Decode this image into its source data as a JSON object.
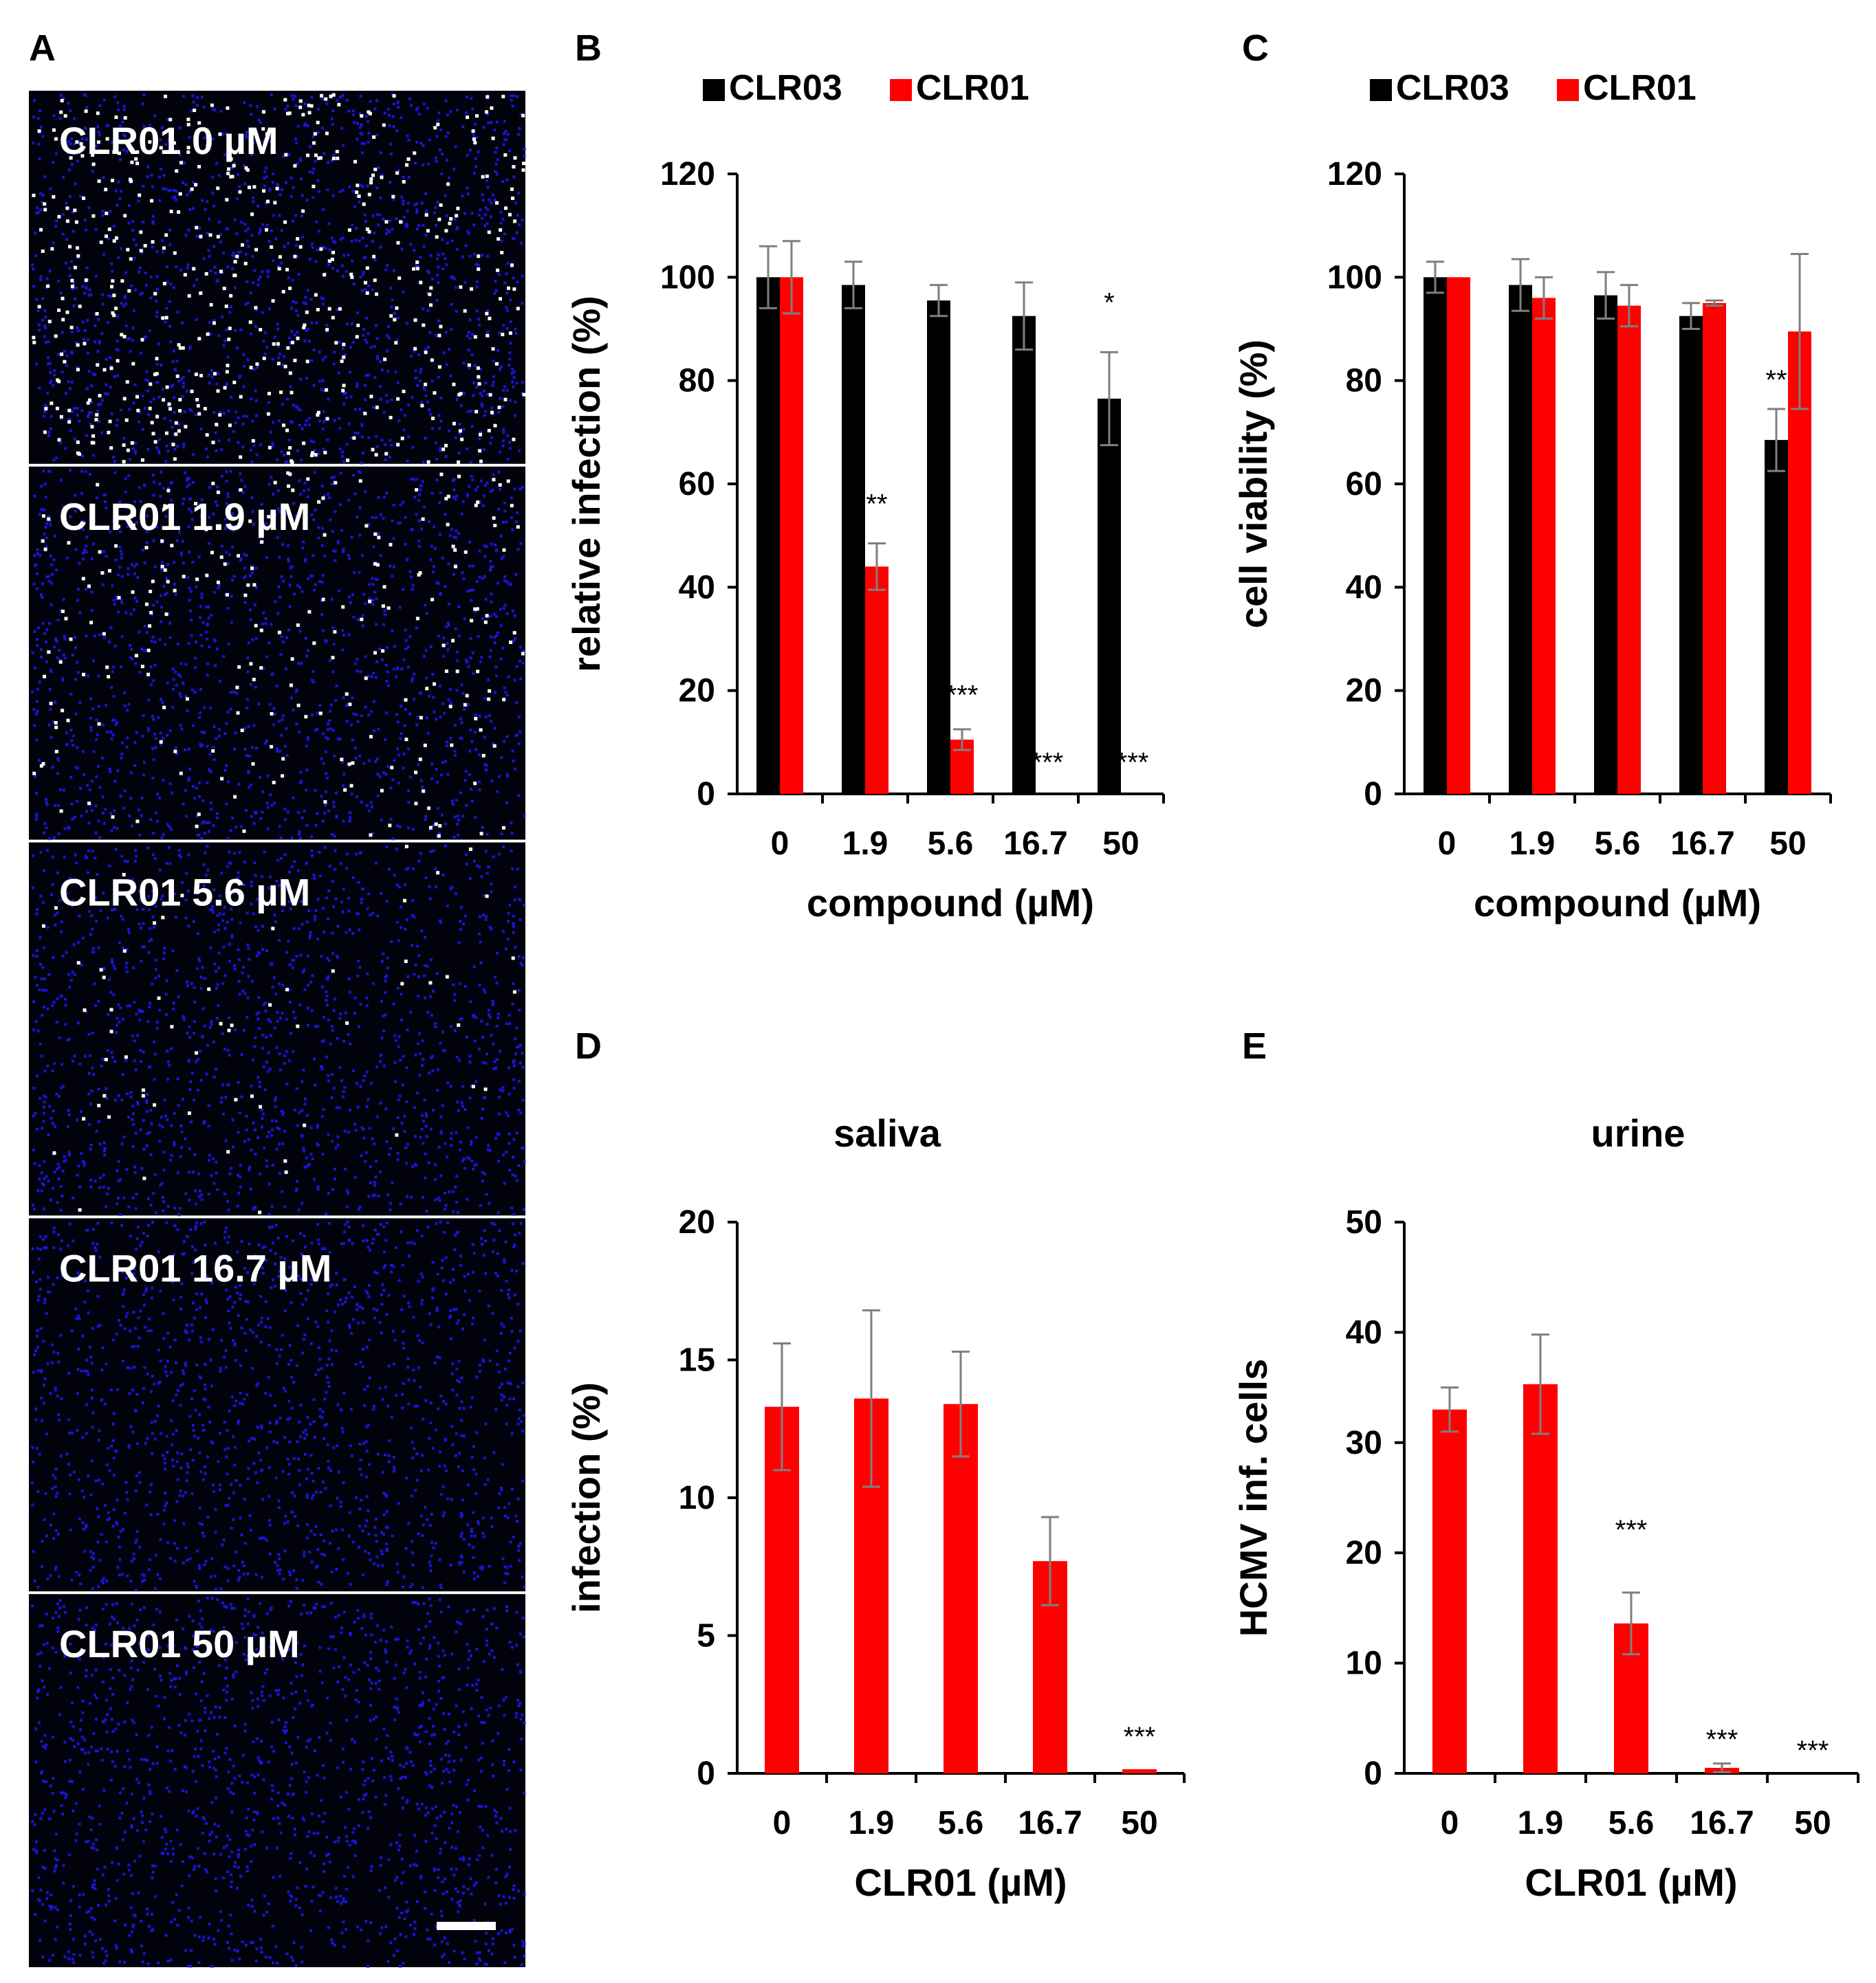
{
  "colors": {
    "clr03": "#000000",
    "clr01": "#ff0000",
    "error": "#7f7f7f",
    "nuclei": "#1a1aff",
    "infected": "#ffffff",
    "micro_bg": "#02020c"
  },
  "panel_letters": [
    "A",
    "B",
    "C",
    "D",
    "E"
  ],
  "panel_a": {
    "label": "A",
    "images": [
      {
        "caption": "CLR01 0 µM",
        "infected_level": 1.0
      },
      {
        "caption": "CLR01 1.9 µM",
        "infected_level": 0.44
      },
      {
        "caption": "CLR01 5.6 µM",
        "infected_level": 0.12
      },
      {
        "caption": "CLR01 16.7 µM",
        "infected_level": 0.0
      },
      {
        "caption": "CLR01 50 µM",
        "infected_level": 0.0
      }
    ]
  },
  "chart_data": [
    {
      "panel": "B",
      "type": "bar",
      "title": "",
      "xlabel": "compound (µM)",
      "ylabel": "relative infection (%)",
      "categories": [
        "0",
        "1.9",
        "5.6",
        "16.7",
        "50"
      ],
      "ylim": [
        0,
        120
      ],
      "yticks": [
        0,
        20,
        40,
        60,
        80,
        100,
        120
      ],
      "legend": "top",
      "grid": false,
      "series": [
        {
          "name": "CLR03",
          "color": "#000000",
          "values": [
            100,
            98.5,
            95.5,
            92.5,
            76.5
          ],
          "errors": [
            6,
            4.5,
            3,
            6.5,
            9
          ]
        },
        {
          "name": "CLR01",
          "color": "#ff0000",
          "values": [
            100,
            44,
            10.5,
            0,
            0
          ],
          "errors": [
            7,
            4.5,
            2,
            0,
            0
          ]
        }
      ],
      "annotations": [
        {
          "text": "*",
          "category": "50",
          "series": "CLR03",
          "y": 96
        },
        {
          "text": "**",
          "category": "1.9",
          "series": "CLR01",
          "y": 57
        },
        {
          "text": "***",
          "category": "5.6",
          "series": "CLR01",
          "y": 20
        },
        {
          "text": "***",
          "category": "16.7",
          "series": "CLR01",
          "y": 7
        },
        {
          "text": "***",
          "category": "50",
          "series": "CLR01",
          "y": 7
        }
      ]
    },
    {
      "panel": "C",
      "type": "bar",
      "title": "",
      "xlabel": "compound (µM)",
      "ylabel": "cell viability (%)",
      "categories": [
        "0",
        "1.9",
        "5.6",
        "16.7",
        "50"
      ],
      "ylim": [
        0,
        120
      ],
      "yticks": [
        0,
        20,
        40,
        60,
        80,
        100,
        120
      ],
      "legend": "top",
      "grid": false,
      "series": [
        {
          "name": "CLR03",
          "color": "#000000",
          "values": [
            100,
            98.5,
            96.5,
            92.5,
            68.5
          ],
          "errors": [
            3,
            5,
            4.5,
            2.5,
            6
          ]
        },
        {
          "name": "CLR01",
          "color": "#ff0000",
          "values": [
            100,
            96,
            94.5,
            95,
            89.5
          ],
          "errors": [
            0,
            4,
            4,
            0.5,
            15
          ]
        }
      ],
      "annotations": [
        {
          "text": "**",
          "category": "50",
          "series": "CLR03",
          "y": 81
        }
      ]
    },
    {
      "panel": "D",
      "type": "bar",
      "title": "saliva",
      "xlabel": "CLR01 (µM)",
      "ylabel": "infection (%)",
      "categories": [
        "0",
        "1.9",
        "5.6",
        "16.7",
        "50"
      ],
      "ylim": [
        0,
        20
      ],
      "yticks": [
        0,
        5,
        10,
        15,
        20
      ],
      "grid": false,
      "series": [
        {
          "color": "#ff0000",
          "values": [
            13.3,
            13.6,
            13.4,
            7.7,
            0.15
          ],
          "errors": [
            2.3,
            3.2,
            1.9,
            1.6,
            0
          ]
        }
      ],
      "annotations": [
        {
          "text": "***",
          "category": "50",
          "series": 0,
          "y": 1.5
        }
      ]
    },
    {
      "panel": "E",
      "type": "bar",
      "title": "urine",
      "xlabel": "CLR01 (µM)",
      "ylabel": "HCMV inf. cells",
      "categories": [
        "0",
        "1.9",
        "5.6",
        "16.7",
        "50"
      ],
      "ylim": [
        0,
        50
      ],
      "yticks": [
        0,
        10,
        20,
        30,
        40,
        50
      ],
      "grid": false,
      "series": [
        {
          "color": "#ff0000",
          "values": [
            33,
            35.3,
            13.6,
            0.5,
            0
          ],
          "errors": [
            2,
            4.5,
            2.8,
            0.4,
            0
          ]
        }
      ],
      "annotations": [
        {
          "text": "***",
          "category": "5.6",
          "series": 0,
          "y": 22.5
        },
        {
          "text": "***",
          "category": "16.7",
          "series": 0,
          "y": 3.5
        },
        {
          "text": "***",
          "category": "50",
          "series": 0,
          "y": 2.5
        }
      ]
    }
  ]
}
